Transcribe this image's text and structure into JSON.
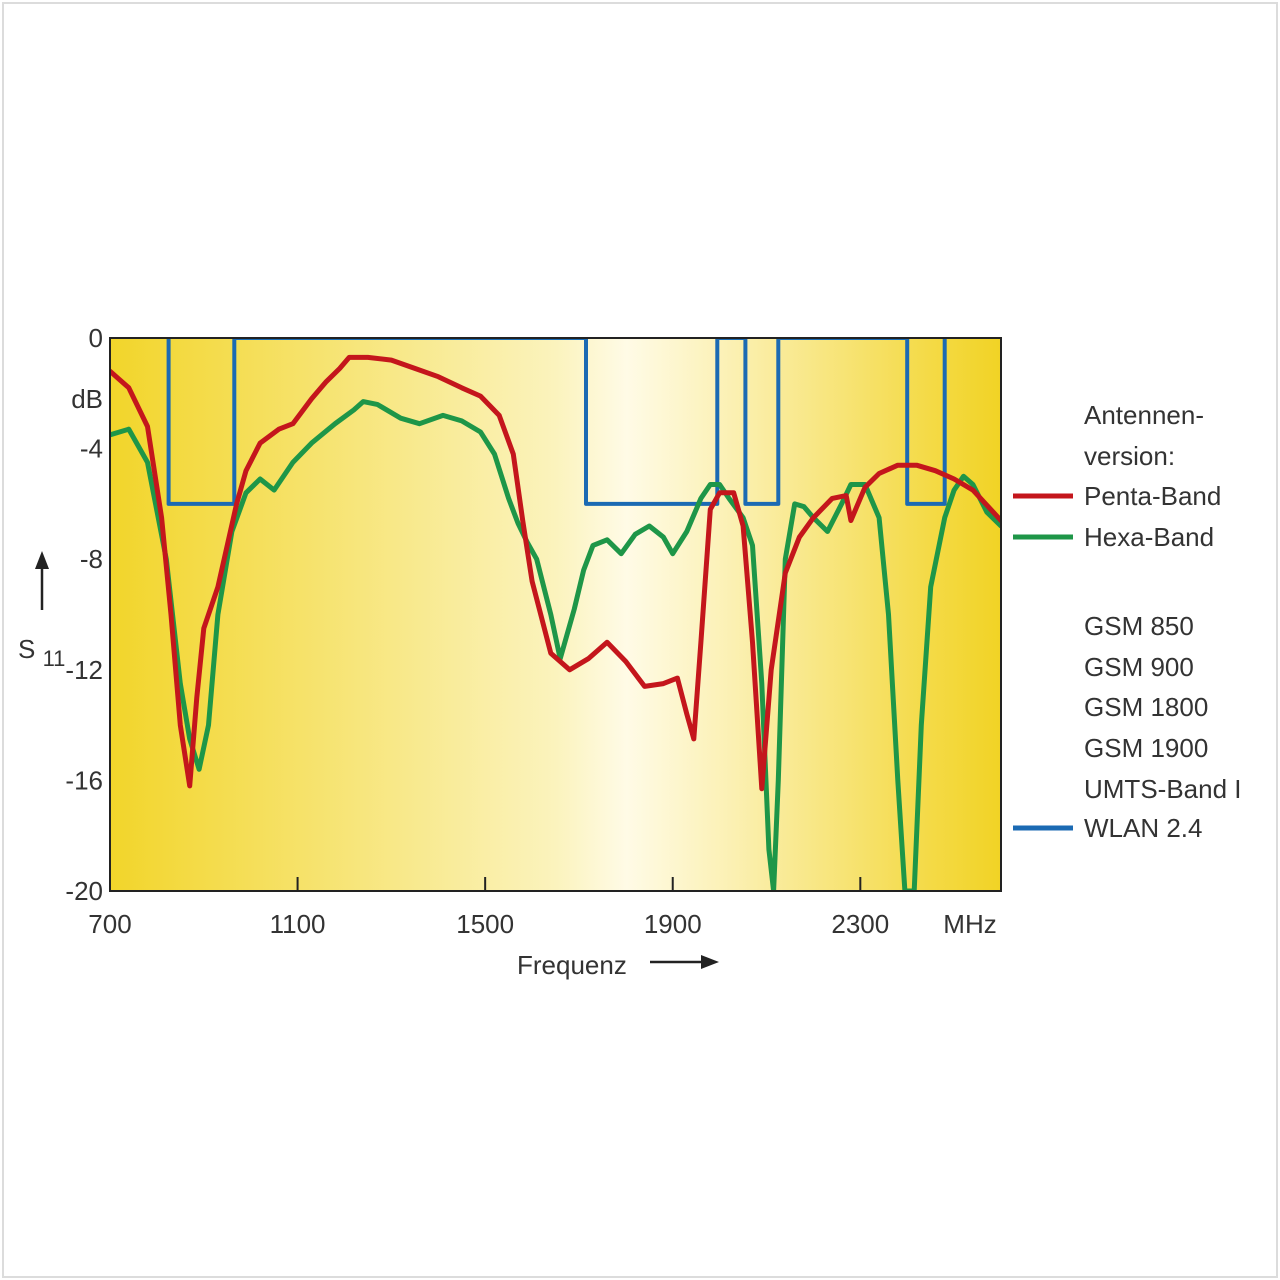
{
  "chart_data": {
    "type": "line",
    "xlabel": "Frequenz",
    "x_unit": "MHz",
    "ylabel": "S11",
    "ylabel_main": "S",
    "ylabel_sub": "11",
    "y_unit": "dB",
    "xlim": [
      700,
      2600
    ],
    "ylim": [
      -20,
      0
    ],
    "x_ticks": [
      700,
      1100,
      1500,
      1900,
      2300
    ],
    "y_ticks": [
      0,
      -4,
      -8,
      -12,
      -16,
      -20
    ],
    "grid": false,
    "legend_position": "right",
    "legend_title": [
      "Antennen-",
      "version:"
    ],
    "band_labels": [
      "GSM 850",
      "GSM 900",
      "GSM 1800",
      "GSM 1900",
      "UMTS-Band I",
      "WLAN 2.4"
    ],
    "series": [
      {
        "name": "Penta-Band",
        "color": "#c4161c",
        "points": [
          [
            700,
            -1.2
          ],
          [
            740,
            -1.8
          ],
          [
            780,
            -3.2
          ],
          [
            810,
            -6.5
          ],
          [
            830,
            -10
          ],
          [
            850,
            -14
          ],
          [
            870,
            -16.2
          ],
          [
            885,
            -13
          ],
          [
            900,
            -10.5
          ],
          [
            930,
            -9
          ],
          [
            970,
            -6
          ],
          [
            990,
            -4.8
          ],
          [
            1020,
            -3.8
          ],
          [
            1060,
            -3.3
          ],
          [
            1090,
            -3.1
          ],
          [
            1130,
            -2.2
          ],
          [
            1160,
            -1.6
          ],
          [
            1190,
            -1.1
          ],
          [
            1210,
            -0.7
          ],
          [
            1250,
            -0.7
          ],
          [
            1300,
            -0.8
          ],
          [
            1350,
            -1.1
          ],
          [
            1400,
            -1.4
          ],
          [
            1450,
            -1.8
          ],
          [
            1490,
            -2.1
          ],
          [
            1530,
            -2.8
          ],
          [
            1560,
            -4.2
          ],
          [
            1580,
            -6.6
          ],
          [
            1600,
            -8.8
          ],
          [
            1640,
            -11.4
          ],
          [
            1680,
            -12
          ],
          [
            1720,
            -11.6
          ],
          [
            1760,
            -11
          ],
          [
            1800,
            -11.7
          ],
          [
            1840,
            -12.6
          ],
          [
            1880,
            -12.5
          ],
          [
            1910,
            -12.3
          ],
          [
            1930,
            -13.6
          ],
          [
            1945,
            -14.5
          ],
          [
            1960,
            -11
          ],
          [
            1980,
            -6.2
          ],
          [
            2000,
            -5.6
          ],
          [
            2030,
            -5.6
          ],
          [
            2050,
            -6.8
          ],
          [
            2070,
            -11
          ],
          [
            2090,
            -16.3
          ],
          [
            2110,
            -12
          ],
          [
            2140,
            -8.5
          ],
          [
            2170,
            -7.2
          ],
          [
            2200,
            -6.5
          ],
          [
            2240,
            -5.8
          ],
          [
            2270,
            -5.7
          ],
          [
            2280,
            -6.6
          ],
          [
            2310,
            -5.4
          ],
          [
            2340,
            -4.9
          ],
          [
            2380,
            -4.6
          ],
          [
            2420,
            -4.6
          ],
          [
            2460,
            -4.8
          ],
          [
            2500,
            -5.1
          ],
          [
            2540,
            -5.5
          ],
          [
            2600,
            -6.6
          ]
        ]
      },
      {
        "name": "Hexa-Band",
        "color": "#1e9648",
        "points": [
          [
            700,
            -3.5
          ],
          [
            740,
            -3.3
          ],
          [
            780,
            -4.5
          ],
          [
            820,
            -8
          ],
          [
            850,
            -12.5
          ],
          [
            870,
            -14.5
          ],
          [
            890,
            -15.6
          ],
          [
            910,
            -14
          ],
          [
            930,
            -10
          ],
          [
            960,
            -7
          ],
          [
            990,
            -5.6
          ],
          [
            1020,
            -5.1
          ],
          [
            1050,
            -5.5
          ],
          [
            1090,
            -4.5
          ],
          [
            1130,
            -3.8
          ],
          [
            1180,
            -3.1
          ],
          [
            1220,
            -2.6
          ],
          [
            1240,
            -2.3
          ],
          [
            1270,
            -2.4
          ],
          [
            1320,
            -2.9
          ],
          [
            1360,
            -3.1
          ],
          [
            1410,
            -2.8
          ],
          [
            1450,
            -3
          ],
          [
            1490,
            -3.4
          ],
          [
            1520,
            -4.2
          ],
          [
            1550,
            -5.8
          ],
          [
            1570,
            -6.7
          ],
          [
            1590,
            -7.4
          ],
          [
            1610,
            -8
          ],
          [
            1640,
            -10
          ],
          [
            1660,
            -11.6
          ],
          [
            1690,
            -9.8
          ],
          [
            1710,
            -8.4
          ],
          [
            1730,
            -7.5
          ],
          [
            1760,
            -7.3
          ],
          [
            1790,
            -7.8
          ],
          [
            1820,
            -7.1
          ],
          [
            1850,
            -6.8
          ],
          [
            1880,
            -7.2
          ],
          [
            1900,
            -7.8
          ],
          [
            1930,
            -7
          ],
          [
            1960,
            -5.8
          ],
          [
            1980,
            -5.3
          ],
          [
            2000,
            -5.3
          ],
          [
            2020,
            -5.8
          ],
          [
            2050,
            -6.5
          ],
          [
            2070,
            -7.5
          ],
          [
            2090,
            -12.5
          ],
          [
            2105,
            -18.5
          ],
          [
            2115,
            -20
          ],
          [
            2125,
            -16
          ],
          [
            2140,
            -8
          ],
          [
            2160,
            -6
          ],
          [
            2180,
            -6.1
          ],
          [
            2200,
            -6.5
          ],
          [
            2230,
            -7
          ],
          [
            2260,
            -6
          ],
          [
            2280,
            -5.3
          ],
          [
            2310,
            -5.3
          ],
          [
            2340,
            -6.5
          ],
          [
            2360,
            -10
          ],
          [
            2380,
            -16
          ],
          [
            2395,
            -20
          ],
          [
            2415,
            -20
          ],
          [
            2430,
            -14
          ],
          [
            2450,
            -9
          ],
          [
            2480,
            -6.5
          ],
          [
            2500,
            -5.5
          ],
          [
            2520,
            -5
          ],
          [
            2540,
            -5.3
          ],
          [
            2570,
            -6.3
          ],
          [
            2600,
            -6.8
          ]
        ]
      },
      {
        "name": "WLAN 2.4",
        "color": "#1b6ab3",
        "points": [
          [
            825,
            0
          ],
          [
            825,
            -6
          ],
          [
            965,
            -6
          ],
          [
            965,
            0
          ],
          [
            1715,
            0
          ],
          [
            1715,
            -6
          ],
          [
            1995,
            -6
          ],
          [
            1995,
            0
          ],
          [
            2055,
            0
          ],
          [
            2055,
            -6
          ],
          [
            2125,
            -6
          ],
          [
            2125,
            0
          ],
          [
            2400,
            0
          ],
          [
            2400,
            -6
          ],
          [
            2480,
            -6
          ],
          [
            2480,
            0
          ]
        ]
      }
    ]
  }
}
